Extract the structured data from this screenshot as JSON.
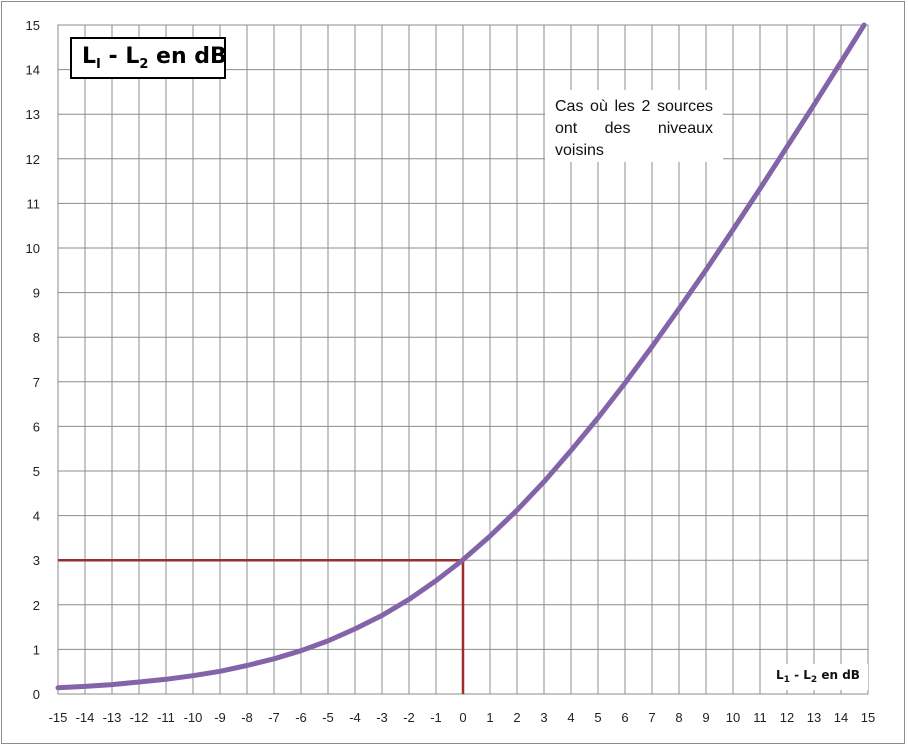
{
  "chart_data": {
    "type": "line",
    "title": {
      "main": "L",
      "sub1": "I",
      "dash": " - L",
      "sub2": "2",
      "rest": " en dB"
    },
    "annotation": "Cas où les 2 sources ont des niveaux voisins",
    "xlabel": {
      "main": "L",
      "sub1": "1",
      "dash": " - L",
      "sub2": "2",
      "rest": "  en dB"
    },
    "ylabel": "",
    "xlim": [
      -15,
      15
    ],
    "ylim": [
      0,
      15
    ],
    "x_ticks": [
      -15,
      -14,
      -13,
      -12,
      -11,
      -10,
      -9,
      -8,
      -7,
      -6,
      -5,
      -4,
      -3,
      -2,
      -1,
      0,
      1,
      2,
      3,
      4,
      5,
      6,
      7,
      8,
      9,
      10,
      11,
      12,
      13,
      14,
      15
    ],
    "y_ticks": [
      0,
      1,
      2,
      3,
      4,
      5,
      6,
      7,
      8,
      9,
      10,
      11,
      12,
      13,
      14,
      15
    ],
    "grid": true,
    "series": [
      {
        "color": "#8464a8",
        "x": [
          -15,
          -14,
          -13,
          -12,
          -11,
          -10,
          -9,
          -8,
          -7,
          -6,
          -5,
          -4,
          -3,
          -2,
          -1,
          0,
          1,
          2,
          3,
          4,
          5,
          6,
          7,
          8,
          9,
          10,
          11,
          12,
          13,
          14,
          15
        ],
        "y": [
          0.14,
          0.17,
          0.21,
          0.27,
          0.33,
          0.41,
          0.51,
          0.64,
          0.79,
          0.97,
          1.19,
          1.46,
          1.76,
          2.12,
          2.54,
          3.01,
          3.54,
          4.12,
          4.76,
          5.46,
          6.19,
          6.97,
          7.79,
          8.64,
          9.51,
          10.41,
          11.33,
          12.27,
          13.21,
          14.17,
          15.14
        ]
      }
    ],
    "reference_lines": {
      "color": "#9b2d2d",
      "x": 0,
      "y": 3
    }
  }
}
